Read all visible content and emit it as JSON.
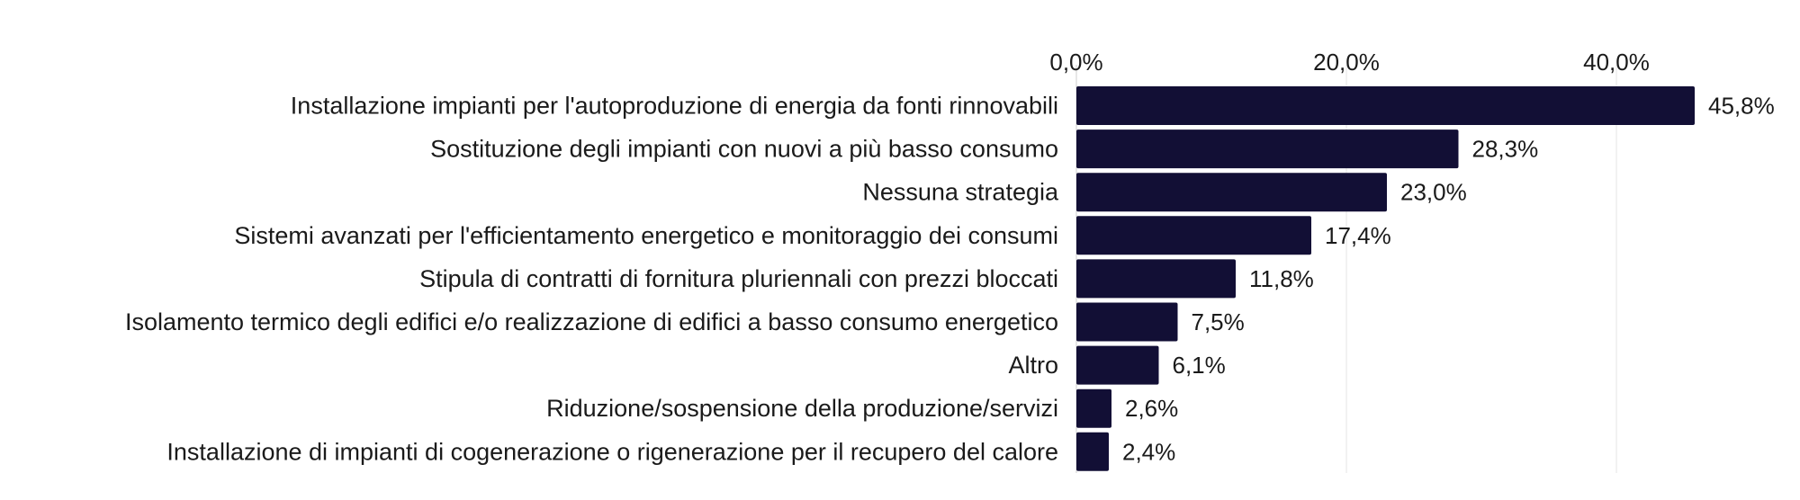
{
  "chart_data": {
    "type": "bar",
    "orientation": "horizontal",
    "categories": [
      "Installazione impianti per l'autoproduzione di energia da fonti rinnovabili",
      "Sostituzione degli impianti con nuovi a più basso consumo",
      "Nessuna strategia",
      "Sistemi avanzati per l'efficientamento energetico e monitoraggio dei consumi",
      "Stipula di contratti di fornitura pluriennali con prezzi bloccati",
      "Isolamento termico degli edifici e/o realizzazione di edifici a basso consumo energetico",
      "Altro",
      "Riduzione/sospensione della produzione/servizi",
      "Installazione di impianti di cogenerazione o rigenerazione per il recupero del calore"
    ],
    "values": [
      45.8,
      28.3,
      23.0,
      17.4,
      11.8,
      7.5,
      6.1,
      2.6,
      2.4
    ],
    "value_labels": [
      "45,8%",
      "28,3%",
      "23,0%",
      "17,4%",
      "11,8%",
      "7,5%",
      "6,1%",
      "2,6%",
      "2,4%"
    ],
    "x_ticks": [
      0,
      20,
      40
    ],
    "x_tick_labels": [
      "0,0%",
      "20,0%",
      "40,0%"
    ],
    "xlim": [
      0,
      50
    ],
    "x_axis_position": "top",
    "grid": true,
    "legend": "none",
    "bar_color": "#120f35",
    "title": "",
    "xlabel": "",
    "ylabel": ""
  }
}
